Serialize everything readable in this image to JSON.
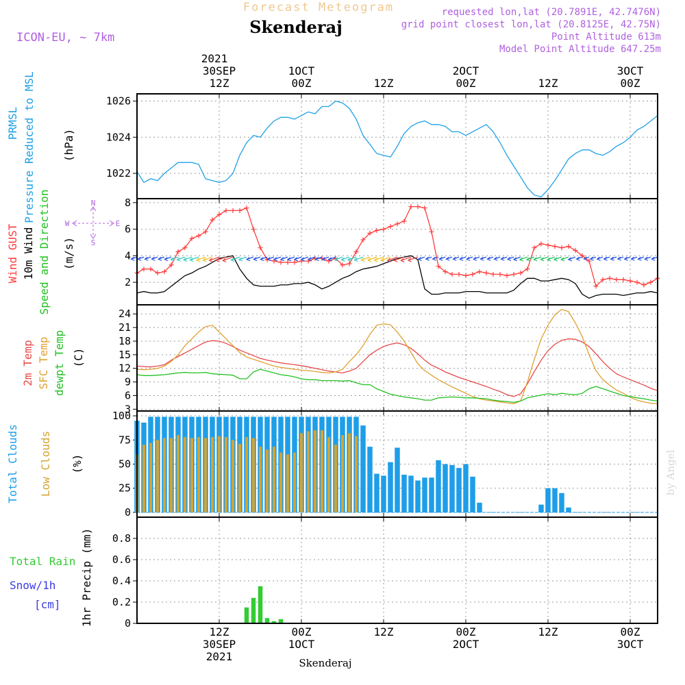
{
  "header": {
    "title": "Forecast Meteogram",
    "location": "Skenderaj",
    "model": "ICON-EU, ~ 7km",
    "requested": "requested lon,lat (20.7891E, 42.7476N)",
    "grid_point": "grid point closest lon,lat (20.8125E, 42.75N)",
    "point_altitude": "Point Altitude 613m",
    "model_altitude": "Model Point Altitude 647.25m",
    "footer_location": "Skenderaj",
    "watermark": "by Angel"
  },
  "colors": {
    "pressure": "#1ea0e6",
    "gust": "#ff3b3b",
    "wind": "#000000",
    "t2m": "#e84848",
    "sfc": "#e0a030",
    "dewpt": "#22c022",
    "total_clouds": "#1e9ee8",
    "low_clouds": "#d4a432",
    "precip": "#33cc33",
    "snow_label": "#3a3ae6",
    "purple": "#b060e0",
    "title_orange": "#f0c890"
  },
  "time_axis": {
    "top_year": "2021",
    "top_ticks": [
      {
        "t": 12,
        "lines": [
          "30SEP",
          "12Z"
        ]
      },
      {
        "t": 24,
        "lines": [
          "1OCT",
          "00Z"
        ]
      },
      {
        "t": 36,
        "lines": [
          "12Z"
        ]
      },
      {
        "t": 48,
        "lines": [
          "2OCT",
          "00Z"
        ]
      },
      {
        "t": 60,
        "lines": [
          "12Z"
        ]
      },
      {
        "t": 72,
        "lines": [
          "3OCT",
          "00Z"
        ]
      }
    ],
    "bottom_ticks": [
      {
        "t": 12,
        "lines": [
          "12Z",
          "30SEP",
          "2021"
        ]
      },
      {
        "t": 24,
        "lines": [
          "00Z",
          "1OCT"
        ]
      },
      {
        "t": 36,
        "lines": [
          "12Z"
        ]
      },
      {
        "t": 48,
        "lines": [
          "00Z",
          "2OCT"
        ]
      },
      {
        "t": 60,
        "lines": [
          "12Z"
        ]
      },
      {
        "t": 72,
        "lines": [
          "00Z",
          "3OCT"
        ]
      }
    ]
  },
  "panel_labels": {
    "pressure": {
      "lines": [
        "PRMSL",
        "Pressure Reduced to MSL"
      ],
      "unit": "(hPa)"
    },
    "wind": {
      "gust": "Wind GUST",
      "wind10m": "10m Wind",
      "speed_dir": "Speed and Direction",
      "unit": "(m/s)",
      "compass_n": "N",
      "compass_s": "S",
      "compass_w": "W",
      "compass_e": "E"
    },
    "temp": {
      "t2m": "2m Temp",
      "sfc": "SFC Temp",
      "dewpt": "dewpt Temp",
      "unit": "(C)"
    },
    "clouds": {
      "total": "Total Clouds",
      "low": "Low Clouds",
      "unit": "(%)"
    },
    "precip": {
      "total_rain": "Total   Rain",
      "snow": "Snow/1h",
      "cm": "[cm]",
      "axis": "1hr Precip (mm)"
    }
  },
  "chart_data": [
    {
      "type": "line",
      "title": "PRMSL Pressure Reduced to MSL",
      "ylabel": "hPa",
      "ylim": [
        1020.6,
        1026.4
      ],
      "yticks": [
        1022,
        1024,
        1026
      ],
      "xlim": [
        0,
        76
      ],
      "x": [
        0,
        1,
        2,
        3,
        4,
        5,
        6,
        7,
        8,
        9,
        10,
        11,
        12,
        13,
        14,
        15,
        16,
        17,
        18,
        19,
        20,
        21,
        22,
        23,
        24,
        25,
        26,
        27,
        28,
        29,
        30,
        31,
        32,
        33,
        34,
        35,
        36,
        37,
        38,
        39,
        40,
        41,
        42,
        43,
        44,
        45,
        46,
        47,
        48,
        49,
        50,
        51,
        52,
        53,
        54,
        55,
        56,
        57,
        58,
        59,
        60,
        61,
        62,
        63,
        64,
        65,
        66,
        67,
        68,
        69,
        70,
        71,
        72,
        73,
        74,
        75,
        76
      ],
      "series": [
        {
          "name": "PRMSL",
          "values": [
            1022.1,
            1021.5,
            1021.7,
            1021.6,
            1022.0,
            1022.3,
            1022.6,
            1022.6,
            1022.6,
            1022.5,
            1021.7,
            1021.6,
            1021.5,
            1021.6,
            1022.0,
            1023.0,
            1023.7,
            1024.1,
            1024.0,
            1024.5,
            1024.9,
            1025.1,
            1025.1,
            1025.0,
            1025.2,
            1025.4,
            1025.3,
            1025.7,
            1025.7,
            1026.0,
            1025.9,
            1025.6,
            1025.0,
            1024.1,
            1023.6,
            1023.1,
            1023.0,
            1022.9,
            1023.5,
            1024.2,
            1024.6,
            1024.8,
            1024.9,
            1024.7,
            1024.7,
            1024.6,
            1024.3,
            1024.3,
            1024.1,
            1024.3,
            1024.5,
            1024.7,
            1024.3,
            1023.7,
            1023.0,
            1022.4,
            1021.8,
            1021.2,
            1020.8,
            1020.7,
            1021.1,
            1021.6,
            1022.2,
            1022.8,
            1023.1,
            1023.3,
            1023.3,
            1023.1,
            1023.0,
            1023.2,
            1023.5,
            1023.7,
            1024.0,
            1024.4,
            1024.6,
            1024.9,
            1025.2
          ]
        }
      ]
    },
    {
      "type": "line",
      "title": "Wind GUST / 10m Wind Speed and Direction",
      "ylabel": "m/s",
      "ylim": [
        0.3,
        8.3
      ],
      "yticks": [
        2,
        4,
        6,
        8
      ],
      "xlim": [
        0,
        76
      ],
      "x": [
        0,
        1,
        2,
        3,
        4,
        5,
        6,
        7,
        8,
        9,
        10,
        11,
        12,
        13,
        14,
        15,
        16,
        17,
        18,
        19,
        20,
        21,
        22,
        23,
        24,
        25,
        26,
        27,
        28,
        29,
        30,
        31,
        32,
        33,
        34,
        35,
        36,
        37,
        38,
        39,
        40,
        41,
        42,
        43,
        44,
        45,
        46,
        47,
        48,
        49,
        50,
        51,
        52,
        53,
        54,
        55,
        56,
        57,
        58,
        59,
        60,
        61,
        62,
        63,
        64,
        65,
        66,
        67,
        68,
        69,
        70,
        71,
        72,
        73,
        74,
        75,
        76
      ],
      "series": [
        {
          "name": "Wind GUST",
          "values": [
            2.7,
            3.0,
            3.0,
            2.7,
            2.8,
            3.3,
            4.3,
            4.6,
            5.3,
            5.5,
            5.8,
            6.7,
            7.1,
            7.4,
            7.4,
            7.4,
            7.6,
            6.0,
            4.6,
            3.7,
            3.6,
            3.5,
            3.5,
            3.5,
            3.6,
            3.6,
            3.8,
            3.8,
            3.6,
            3.8,
            3.3,
            3.4,
            4.3,
            5.2,
            5.7,
            5.9,
            6.0,
            6.2,
            6.4,
            6.6,
            7.7,
            7.7,
            7.6,
            5.8,
            3.2,
            2.8,
            2.6,
            2.6,
            2.5,
            2.6,
            2.8,
            2.7,
            2.6,
            2.6,
            2.5,
            2.6,
            2.7,
            3.0,
            4.6,
            4.9,
            4.8,
            4.7,
            4.6,
            4.7,
            4.4,
            4.0,
            3.6,
            1.7,
            2.2,
            2.3,
            2.2,
            2.2,
            2.1,
            2.0,
            1.8,
            2.0,
            2.3
          ]
        },
        {
          "name": "10m Wind",
          "values": [
            1.2,
            1.3,
            1.2,
            1.2,
            1.3,
            1.7,
            2.1,
            2.5,
            2.7,
            3.0,
            3.2,
            3.5,
            3.8,
            3.9,
            4.0,
            3.0,
            2.3,
            1.8,
            1.7,
            1.7,
            1.7,
            1.8,
            1.8,
            1.9,
            1.9,
            2.0,
            1.8,
            1.5,
            1.7,
            2.0,
            2.3,
            2.5,
            2.8,
            3.0,
            3.1,
            3.2,
            3.4,
            3.6,
            3.8,
            3.9,
            4.0,
            3.7,
            1.5,
            1.1,
            1.1,
            1.2,
            1.2,
            1.2,
            1.3,
            1.3,
            1.3,
            1.2,
            1.2,
            1.2,
            1.2,
            1.4,
            1.9,
            2.3,
            2.3,
            2.1,
            2.1,
            2.2,
            2.3,
            2.2,
            1.9,
            1.1,
            0.8,
            1.0,
            1.1,
            1.1,
            1.1,
            1.0,
            1.1,
            1.2,
            1.2,
            1.3,
            1.2
          ]
        }
      ]
    },
    {
      "type": "line",
      "title": "2m Temp / SFC Temp / dewpt Temp",
      "ylabel": "C",
      "ylim": [
        2.6,
        26.0
      ],
      "yticks": [
        3,
        6,
        9,
        12,
        15,
        18,
        21,
        24
      ],
      "xlim": [
        0,
        76
      ],
      "x": [
        0,
        1,
        2,
        3,
        4,
        5,
        6,
        7,
        8,
        9,
        10,
        11,
        12,
        13,
        14,
        15,
        16,
        17,
        18,
        19,
        20,
        21,
        22,
        23,
        24,
        25,
        26,
        27,
        28,
        29,
        30,
        31,
        32,
        33,
        34,
        35,
        36,
        37,
        38,
        39,
        40,
        41,
        42,
        43,
        44,
        45,
        46,
        47,
        48,
        49,
        50,
        51,
        52,
        53,
        54,
        55,
        56,
        57,
        58,
        59,
        60,
        61,
        62,
        63,
        64,
        65,
        66,
        67,
        68,
        69,
        70,
        71,
        72,
        73,
        74,
        75,
        76
      ],
      "series": [
        {
          "name": "2m Temp",
          "values": [
            12.5,
            12.4,
            12.3,
            12.5,
            12.8,
            13.8,
            14.6,
            15.4,
            16.2,
            17.0,
            17.8,
            18.1,
            18.0,
            17.5,
            16.8,
            16.0,
            15.4,
            14.8,
            14.2,
            13.8,
            13.5,
            13.2,
            13.0,
            12.8,
            12.6,
            12.3,
            12.0,
            11.7,
            11.4,
            11.2,
            11.0,
            11.4,
            12.0,
            13.5,
            15.0,
            16.0,
            16.8,
            17.3,
            17.6,
            17.2,
            16.4,
            15.2,
            13.8,
            12.7,
            12.0,
            11.2,
            10.6,
            10.0,
            9.5,
            9.0,
            8.5,
            8.0,
            7.4,
            6.9,
            6.2,
            5.8,
            6.4,
            8.6,
            11.3,
            13.8,
            15.9,
            17.3,
            18.2,
            18.5,
            18.4,
            17.8,
            16.8,
            15.2,
            13.5,
            12.0,
            10.8,
            10.1,
            9.5,
            8.9,
            8.3,
            7.6,
            7.1
          ]
        },
        {
          "name": "SFC Temp",
          "values": [
            11.8,
            11.7,
            11.8,
            12.0,
            12.5,
            13.5,
            15.0,
            17.0,
            18.5,
            20.0,
            21.2,
            21.5,
            20.0,
            18.5,
            17.0,
            15.5,
            14.5,
            14.0,
            13.5,
            13.0,
            12.5,
            12.2,
            12.0,
            11.8,
            11.6,
            11.5,
            11.3,
            11.1,
            11.0,
            11.2,
            11.8,
            13.5,
            15.0,
            17.0,
            19.5,
            21.5,
            21.8,
            21.6,
            20.0,
            18.0,
            15.5,
            13.0,
            11.5,
            10.5,
            9.5,
            8.7,
            7.9,
            7.2,
            6.5,
            5.8,
            5.3,
            5.0,
            4.8,
            4.6,
            4.4,
            4.2,
            4.8,
            9.0,
            14.0,
            18.5,
            21.5,
            23.8,
            25.0,
            24.5,
            22.0,
            19.0,
            15.0,
            11.5,
            9.5,
            8.3,
            7.2,
            6.5,
            5.6,
            5.0,
            4.6,
            4.3,
            4.2
          ]
        },
        {
          "name": "dewpt Temp",
          "values": [
            10.6,
            10.4,
            10.4,
            10.5,
            10.6,
            10.8,
            11.0,
            11.1,
            11.0,
            11.0,
            11.1,
            10.8,
            10.7,
            10.6,
            10.5,
            9.7,
            9.7,
            11.2,
            11.8,
            11.4,
            11.0,
            10.6,
            10.4,
            10.1,
            9.7,
            9.5,
            9.5,
            9.3,
            9.3,
            9.3,
            9.2,
            9.3,
            8.8,
            8.4,
            8.4,
            7.5,
            6.9,
            6.3,
            6.0,
            5.7,
            5.5,
            5.3,
            5.0,
            5.0,
            5.5,
            5.6,
            5.7,
            5.6,
            5.5,
            5.5,
            5.4,
            5.3,
            5.0,
            4.8,
            4.7,
            4.5,
            4.8,
            5.5,
            5.8,
            6.1,
            6.4,
            6.2,
            6.5,
            6.3,
            6.2,
            6.5,
            7.5,
            8.0,
            7.5,
            7.0,
            6.5,
            6.0,
            5.8,
            5.5,
            5.3,
            5.0,
            4.8
          ]
        }
      ]
    },
    {
      "type": "bar",
      "title": "Total Clouds / Low Clouds",
      "ylabel": "%",
      "ylim": [
        -5,
        105
      ],
      "yticks": [
        0,
        25,
        50,
        75,
        100
      ],
      "xlim": [
        0,
        76
      ],
      "x": [
        0,
        1,
        2,
        3,
        4,
        5,
        6,
        7,
        8,
        9,
        10,
        11,
        12,
        13,
        14,
        15,
        16,
        17,
        18,
        19,
        20,
        21,
        22,
        23,
        24,
        25,
        26,
        27,
        28,
        29,
        30,
        31,
        32,
        33,
        34,
        35,
        36,
        37,
        38,
        39,
        40,
        41,
        42,
        43,
        44,
        45,
        46,
        47,
        48,
        49,
        50,
        51,
        52,
        53,
        54,
        55,
        56,
        57,
        58,
        59,
        60,
        61,
        62,
        63,
        64,
        65,
        66,
        67,
        68,
        69,
        70,
        71,
        72,
        73,
        74,
        75,
        76
      ],
      "series": [
        {
          "name": "Total Clouds",
          "values": [
            95,
            93,
            99,
            99,
            99,
            99,
            99,
            99,
            99,
            99,
            99,
            99,
            99,
            99,
            99,
            99,
            99,
            99,
            99,
            99,
            99,
            99,
            99,
            99,
            99,
            99,
            99,
            99,
            99,
            99,
            99,
            99,
            99,
            90,
            68,
            40,
            38,
            52,
            67,
            39,
            38,
            33,
            36,
            36,
            54,
            50,
            49,
            46,
            50,
            37,
            10,
            0,
            0,
            0,
            0,
            0,
            0,
            0,
            0,
            8,
            25,
            25,
            20,
            5,
            0,
            0,
            0,
            0,
            0,
            0,
            0,
            0,
            0,
            0,
            0,
            0,
            0
          ]
        },
        {
          "name": "Low Clouds",
          "values": [
            60,
            70,
            72,
            75,
            77,
            77,
            80,
            78,
            77,
            78,
            77,
            78,
            79,
            78,
            75,
            71,
            78,
            77,
            68,
            65,
            68,
            62,
            60,
            62,
            82,
            84,
            85,
            85,
            78,
            70,
            80,
            82,
            79,
            0,
            0,
            0,
            0,
            0,
            0,
            0,
            0,
            0,
            0,
            0,
            0,
            0,
            0,
            0,
            0,
            0,
            0,
            0,
            0,
            0,
            0,
            0,
            0,
            0,
            0,
            0,
            0,
            0,
            0,
            0,
            0,
            0,
            0,
            0,
            0,
            0,
            0,
            0,
            0,
            0,
            0,
            0,
            0
          ]
        }
      ]
    },
    {
      "type": "bar",
      "title": "1hr Precip",
      "ylabel": "1hr Precip (mm)",
      "ylim": [
        0,
        1.0
      ],
      "yticks": [
        0,
        0.2,
        0.4,
        0.6,
        0.8
      ],
      "xlim": [
        0,
        76
      ],
      "x": [
        15,
        16,
        17,
        18,
        19,
        20,
        21,
        22
      ],
      "series": [
        {
          "name": "Total Rain",
          "values": [
            0.005,
            0.15,
            0.24,
            0.35,
            0.05,
            0.02,
            0.04,
            0.0
          ]
        }
      ]
    }
  ]
}
